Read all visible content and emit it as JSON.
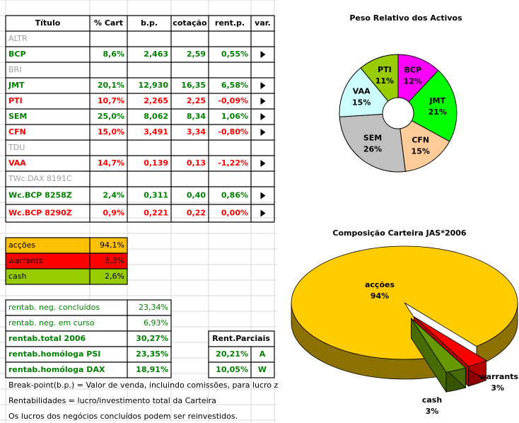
{
  "table": {
    "header": [
      "Título",
      "% Cart",
      "b.p.",
      "cotação",
      "rent.p.",
      "var."
    ],
    "rows": [
      {
        "cells": [
          "ALTR"
        ],
        "color": "#a0a0a0"
      },
      {
        "cells": [
          "BCP",
          "8,6%",
          "2,463",
          "2,59",
          "0,55%"
        ],
        "color": "#008000"
      },
      {
        "cells": [
          "BRI"
        ],
        "color": "#a0a0a0"
      },
      {
        "cells": [
          "JMT",
          "20,1%",
          "12,930",
          "16,35",
          "6,58%"
        ],
        "color": "#008000"
      },
      {
        "cells": [
          "PTI",
          "10,7%",
          "2,265",
          "2,25",
          "-0,09%"
        ],
        "color": "#ff0000"
      },
      {
        "cells": [
          "SEM",
          "25,0%",
          "8,062",
          "8,34",
          "1,06%"
        ],
        "color": "#008000"
      },
      {
        "cells": [
          "CFN",
          "15,0%",
          "3,491",
          "3,34",
          "-0,80%"
        ],
        "color": "#ff0000"
      },
      {
        "cells": [
          "TDU"
        ],
        "color": "#a0a0a0"
      },
      {
        "cells": [
          "VAA",
          "14,7%",
          "0,139",
          "0,13",
          "-1,22%"
        ],
        "color": "#ff0000"
      },
      {
        "cells": [
          "TWc.DAX 8191C"
        ],
        "color": "#a0a0a0"
      },
      {
        "cells": [
          "Wc.BCP 8258Z",
          "2,4%",
          "0,311",
          "0,40",
          "0,86%"
        ],
        "color": "#008000"
      },
      {
        "cells": [
          "Wc.BCP 8290Z",
          "0,9%",
          "0,221",
          "0,22",
          "0,00%"
        ],
        "color": "#ff0000"
      }
    ]
  },
  "allocation": {
    "rows": [
      {
        "label": "acções",
        "value": "94,1%",
        "color": "#ffc000"
      },
      {
        "label": "warrants",
        "value": "3,3%",
        "color": "#ff0000"
      },
      {
        "label": "cash",
        "value": "2,6%",
        "color": "#99cc00"
      }
    ]
  },
  "returns": {
    "rows": [
      {
        "label": "rentab. neg. concluídos",
        "value": "23,34%"
      },
      {
        "label": "rentab. neg. em curso",
        "value": "6,93%"
      },
      {
        "label": "rentab.total 2006",
        "value": "30,27%"
      },
      {
        "label": "rentab.homóloga PSI",
        "value": "23,35%"
      },
      {
        "label": "rentab.homóloga DAX",
        "value": "18,91%"
      }
    ]
  },
  "partial": {
    "title": "Rent.Parciais",
    "rows": [
      [
        "20,21%",
        "A"
      ],
      [
        "10,05%",
        "W"
      ]
    ]
  },
  "notes": [
    "Break-point(b.p.) = Valor de venda, incluindo comissões, para lucro zero.",
    "Rentabilidades = lucro/investimento total da Carteira",
    "Os lucros dos negócios concluídos podem ser reinvestidos."
  ],
  "chart_data": [
    {
      "type": "pie",
      "title": "Peso Relativo dos Activos",
      "categories": [
        "BCP",
        "JMT",
        "CFN",
        "SEM",
        "VAA",
        "PTI"
      ],
      "values": [
        12,
        21,
        15,
        26,
        15,
        11
      ],
      "value_labels": [
        "12%",
        "21%",
        "15%",
        "26%",
        "15%",
        "11%"
      ],
      "colors": [
        "#ff00ff",
        "#00ff00",
        "#ffcc99",
        "#c0c0c0",
        "#ccffff",
        "#99cc00"
      ],
      "donut": true
    },
    {
      "type": "pie3d",
      "title": "Composição Carteira JAS*2006",
      "categories": [
        "acções",
        "warrants",
        "cash"
      ],
      "values": [
        94,
        3,
        3
      ],
      "value_labels": [
        "94%",
        "3%",
        "3%"
      ],
      "colors": [
        "#ffcc00",
        "#ff0000",
        "#669900"
      ]
    }
  ]
}
